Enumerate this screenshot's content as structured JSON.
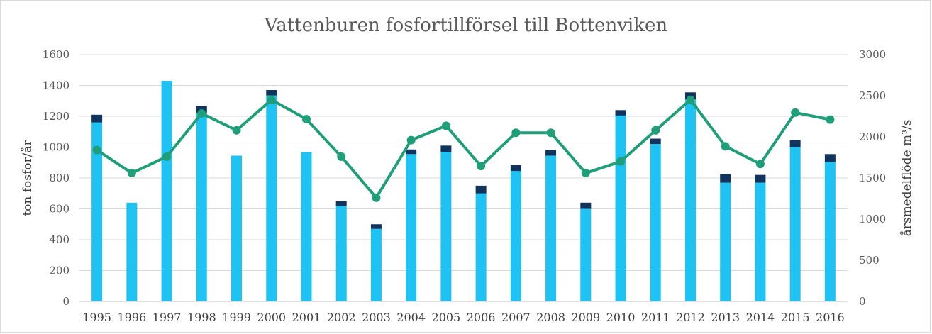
{
  "chart_data": {
    "type": "bar",
    "title": "Vattenburen fosfortillförsel till Bottenviken",
    "ylabel": "ton fosfor/år",
    "y2label": "årsmedelflöde m³/s",
    "ylim": [
      0,
      1600
    ],
    "y2lim": [
      0,
      3000
    ],
    "yticks": [
      0,
      200,
      400,
      600,
      800,
      1000,
      1200,
      1400,
      1600
    ],
    "y2ticks": [
      0,
      500,
      1000,
      1500,
      2000,
      2500,
      3000
    ],
    "grid": true,
    "stacked": true,
    "categories": [
      "1995",
      "1996",
      "1997",
      "1998",
      "1999",
      "2000",
      "2001",
      "2002",
      "2003",
      "2004",
      "2005",
      "2006",
      "2007",
      "2008",
      "2009",
      "2010",
      "2011",
      "2012",
      "2013",
      "2014",
      "2015",
      "2016"
    ],
    "series": [
      {
        "type": "bar",
        "axis": "left",
        "color": "#1ec3f3",
        "values": [
          1160,
          640,
          1430,
          1220,
          945,
          1335,
          968,
          620,
          470,
          955,
          970,
          700,
          845,
          945,
          600,
          1205,
          1020,
          1310,
          770,
          770,
          1000,
          905
        ]
      },
      {
        "type": "bar",
        "axis": "left",
        "color": "#10345e",
        "values": [
          50,
          0,
          0,
          45,
          0,
          35,
          0,
          30,
          30,
          30,
          40,
          50,
          40,
          35,
          40,
          35,
          35,
          45,
          55,
          50,
          45,
          50
        ]
      },
      {
        "type": "line",
        "axis": "right",
        "color": "#1f9e7a",
        "values": [
          1840,
          1560,
          1760,
          2285,
          2080,
          2450,
          2215,
          1760,
          1260,
          1960,
          2135,
          1645,
          2050,
          2050,
          1560,
          1700,
          2080,
          2450,
          1885,
          1670,
          2295,
          2210
        ]
      }
    ]
  }
}
